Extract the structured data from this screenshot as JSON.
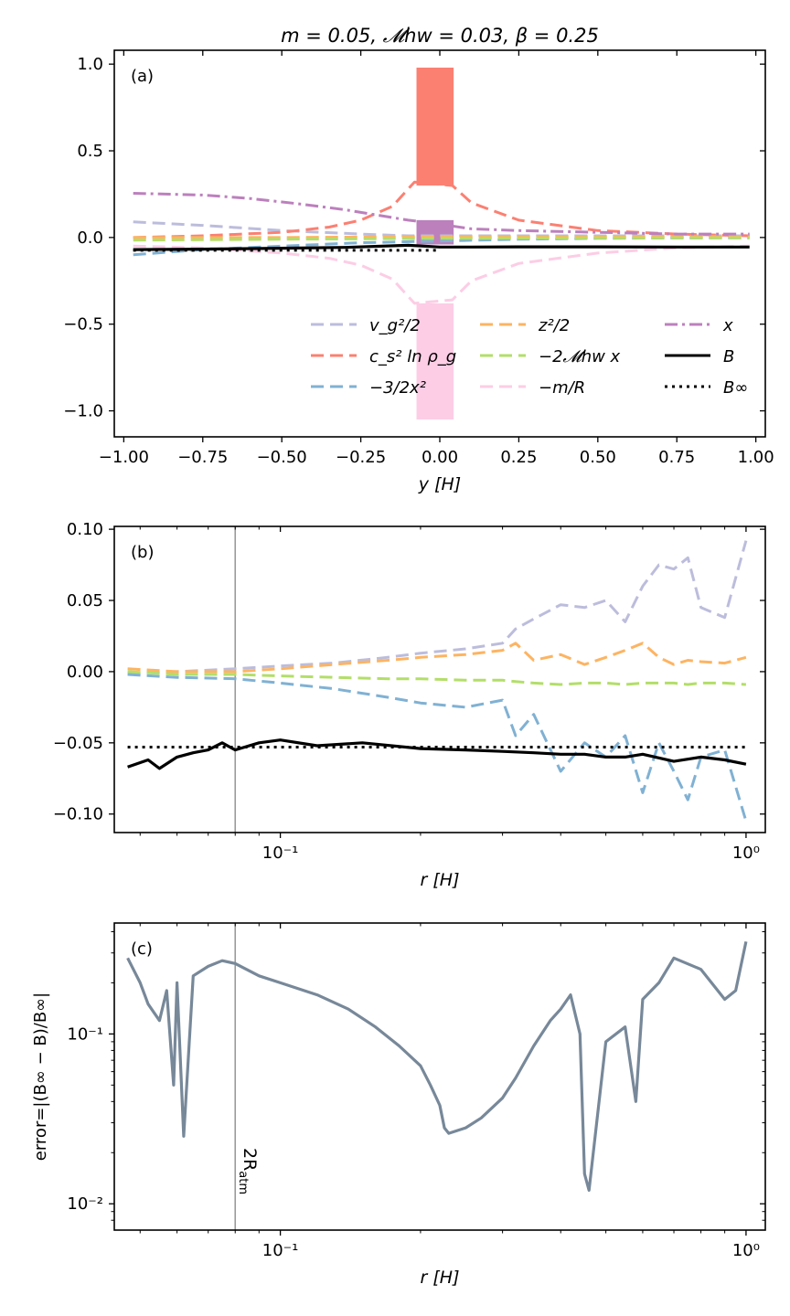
{
  "chart_data": [
    {
      "id": "a",
      "type": "line",
      "title": "m = 0.05,  𝓜hw = 0.03,  β = 0.25",
      "panel_label": "(a)",
      "xlabel": "y [H]",
      "ylabel": "",
      "xlim": [
        -1.03,
        1.03
      ],
      "ylim": [
        -1.15,
        1.08
      ],
      "xscale": "linear",
      "yscale": "linear",
      "xticks": [
        -1.0,
        -0.75,
        -0.5,
        -0.25,
        0.0,
        0.25,
        0.5,
        0.75,
        1.0
      ],
      "xtick_labels": [
        "−1.00",
        "−0.75",
        "−0.50",
        "−0.25",
        "0.00",
        "0.25",
        "0.50",
        "0.75",
        "1.00"
      ],
      "yticks": [
        -1.0,
        -0.5,
        0.0,
        0.5,
        1.0
      ],
      "ytick_labels": [
        "−1.0",
        "−0.5",
        "0.0",
        "0.5",
        "1.0"
      ],
      "legend": {
        "position": "lower-right",
        "entries": [
          {
            "label": "v_g²/2",
            "color": "#bcbddc",
            "style": "dashed"
          },
          {
            "label": "c_s² ln ρ_g",
            "color": "#fb8072",
            "style": "dashed"
          },
          {
            "label": "−3/2x²",
            "color": "#80b1d3",
            "style": "dashed"
          },
          {
            "label": "z²/2",
            "color": "#fdb462",
            "style": "dashed"
          },
          {
            "label": "−2𝓜hw x",
            "color": "#b3de69",
            "style": "dashed"
          },
          {
            "label": "−m/R",
            "color": "#fccde5",
            "style": "dashed"
          },
          {
            "label": "x",
            "color": "#bc80bd",
            "style": "dashdot"
          },
          {
            "label": "B",
            "color": "#000000",
            "style": "solid"
          },
          {
            "label": "B∞",
            "color": "#000000",
            "style": "dotted"
          }
        ]
      },
      "series": [
        {
          "name": "v_g²/2",
          "color": "#bcbddc",
          "style": "dashed",
          "x": [
            -0.97,
            -0.75,
            -0.5,
            -0.25,
            -0.1,
            0.0,
            0.25,
            0.5,
            0.75,
            0.98
          ],
          "y": [
            0.09,
            0.07,
            0.04,
            0.02,
            0.01,
            0.01,
            0.01,
            0.01,
            0.01,
            0.01
          ]
        },
        {
          "name": "c_s² ln ρ_g",
          "color": "#fb8072",
          "style": "dashed",
          "x": [
            -0.97,
            -0.75,
            -0.5,
            -0.35,
            -0.25,
            -0.15,
            -0.08,
            0.04,
            0.1,
            0.25,
            0.5,
            0.75,
            0.98
          ],
          "y": [
            0.0,
            0.01,
            0.03,
            0.06,
            0.1,
            0.18,
            0.32,
            0.3,
            0.2,
            0.1,
            0.04,
            0.02,
            0.01
          ]
        },
        {
          "name": "−3/2x²",
          "color": "#80b1d3",
          "style": "dashed",
          "x": [
            -0.97,
            -0.75,
            -0.5,
            -0.25,
            0.0,
            0.25,
            0.5,
            0.75,
            0.98
          ],
          "y": [
            -0.1,
            -0.07,
            -0.05,
            -0.03,
            -0.02,
            -0.01,
            -0.005,
            -0.003,
            -0.002
          ]
        },
        {
          "name": "z²/2",
          "color": "#fdb462",
          "style": "dashed",
          "x": [
            -0.97,
            -0.5,
            0.0,
            0.5,
            0.98
          ],
          "y": [
            0.0,
            0.0,
            0.005,
            0.005,
            0.005
          ]
        },
        {
          "name": "−2𝓜hw x",
          "color": "#b3de69",
          "style": "dashed",
          "x": [
            -0.97,
            -0.5,
            0.0,
            0.5,
            0.98
          ],
          "y": [
            -0.015,
            -0.01,
            -0.005,
            -0.003,
            -0.002
          ]
        },
        {
          "name": "−m/R",
          "color": "#fccde5",
          "style": "dashed",
          "x": [
            -0.97,
            -0.75,
            -0.5,
            -0.35,
            -0.25,
            -0.15,
            -0.08,
            0.04,
            0.1,
            0.25,
            0.5,
            0.75,
            0.98
          ],
          "y": [
            -0.05,
            -0.06,
            -0.09,
            -0.12,
            -0.16,
            -0.24,
            -0.38,
            -0.36,
            -0.25,
            -0.15,
            -0.09,
            -0.06,
            -0.05
          ]
        },
        {
          "name": "x",
          "color": "#bc80bd",
          "style": "dashdot",
          "x": [
            -0.97,
            -0.75,
            -0.6,
            -0.45,
            -0.3,
            -0.2,
            -0.1,
            -0.05,
            0.1,
            0.25,
            0.5,
            0.75,
            0.98
          ],
          "y": [
            0.255,
            0.245,
            0.225,
            0.195,
            0.16,
            0.13,
            0.1,
            0.09,
            0.05,
            0.04,
            0.03,
            0.02,
            0.02
          ]
        },
        {
          "name": "B",
          "color": "#000000",
          "style": "solid",
          "x": [
            -0.97,
            -0.75,
            -0.5,
            -0.3,
            -0.1,
            -0.05,
            0.0,
            0.1,
            0.25,
            0.5,
            0.75,
            0.98
          ],
          "y": [
            -0.07,
            -0.067,
            -0.062,
            -0.057,
            -0.045,
            -0.05,
            -0.055,
            -0.055,
            -0.054,
            -0.054,
            -0.055,
            -0.055
          ]
        },
        {
          "name": "B∞",
          "color": "#000000",
          "style": "dotted",
          "x": [
            -0.97,
            -0.5,
            0.0
          ],
          "y": [
            -0.074,
            -0.074,
            -0.074
          ]
        }
      ],
      "spikes": [
        {
          "name": "c_s² ln ρ_g spike",
          "color": "#fb8072",
          "x_range": [
            -0.07,
            0.04
          ],
          "y_range": [
            0.3,
            0.98
          ]
        },
        {
          "name": "−m/R spike",
          "color": "#fccde5",
          "x_range": [
            -0.07,
            0.04
          ],
          "y_range": [
            -1.05,
            -0.38
          ]
        },
        {
          "name": "x spike",
          "color": "#bc80bd",
          "x_range": [
            -0.07,
            0.04
          ],
          "y_range": [
            -0.04,
            0.1
          ]
        }
      ]
    },
    {
      "id": "b",
      "type": "line",
      "panel_label": "(b)",
      "xlabel": "r [H]",
      "ylabel": "",
      "xscale": "log",
      "xlim": [
        0.044,
        1.1
      ],
      "ylim": [
        -0.113,
        0.102
      ],
      "xticks": [
        0.1,
        1.0
      ],
      "xtick_labels": [
        "10⁻¹",
        "10⁰"
      ],
      "yticks": [
        -0.1,
        -0.05,
        0.0,
        0.05,
        0.1
      ],
      "ytick_labels": [
        "−0.10",
        "−0.05",
        "0.00",
        "0.05",
        "0.10"
      ],
      "vline": {
        "x": 0.08,
        "color": "#999999"
      },
      "series": [
        {
          "name": "v_g²/2",
          "color": "#bcbddc",
          "style": "dashed",
          "x": [
            0.047,
            0.06,
            0.08,
            0.1,
            0.13,
            0.17,
            0.2,
            0.25,
            0.3,
            0.32,
            0.35,
            0.4,
            0.45,
            0.5,
            0.55,
            0.6,
            0.65,
            0.7,
            0.75,
            0.8,
            0.9,
            1.0
          ],
          "y": [
            -0.001,
            0.0,
            0.002,
            0.004,
            0.006,
            0.01,
            0.013,
            0.016,
            0.02,
            0.03,
            0.037,
            0.047,
            0.045,
            0.05,
            0.035,
            0.06,
            0.075,
            0.072,
            0.08,
            0.045,
            0.038,
            0.092
          ]
        },
        {
          "name": "z²/2",
          "color": "#fdb462",
          "style": "dashed",
          "x": [
            0.047,
            0.06,
            0.08,
            0.1,
            0.13,
            0.17,
            0.2,
            0.25,
            0.3,
            0.32,
            0.35,
            0.4,
            0.45,
            0.5,
            0.55,
            0.6,
            0.65,
            0.7,
            0.75,
            0.8,
            0.9,
            1.0
          ],
          "y": [
            0.002,
            0.0,
            0.0,
            0.002,
            0.005,
            0.008,
            0.01,
            0.012,
            0.015,
            0.02,
            0.008,
            0.012,
            0.005,
            0.01,
            0.015,
            0.02,
            0.01,
            0.005,
            0.008,
            0.007,
            0.006,
            0.01
          ]
        },
        {
          "name": "−2𝓜hw x",
          "color": "#b3de69",
          "style": "dashed",
          "x": [
            0.047,
            0.06,
            0.08,
            0.1,
            0.13,
            0.17,
            0.2,
            0.25,
            0.3,
            0.32,
            0.35,
            0.4,
            0.45,
            0.5,
            0.55,
            0.6,
            0.65,
            0.7,
            0.75,
            0.8,
            0.9,
            1.0
          ],
          "y": [
            0.0,
            -0.002,
            -0.002,
            -0.003,
            -0.004,
            -0.005,
            -0.005,
            -0.006,
            -0.006,
            -0.007,
            -0.008,
            -0.009,
            -0.008,
            -0.008,
            -0.009,
            -0.008,
            -0.008,
            -0.008,
            -0.009,
            -0.008,
            -0.008,
            -0.009
          ]
        },
        {
          "name": "−3/2x²",
          "color": "#80b1d3",
          "style": "dashed",
          "x": [
            0.047,
            0.06,
            0.08,
            0.1,
            0.13,
            0.17,
            0.2,
            0.25,
            0.3,
            0.32,
            0.35,
            0.4,
            0.45,
            0.5,
            0.55,
            0.6,
            0.65,
            0.7,
            0.75,
            0.8,
            0.9,
            1.0
          ],
          "y": [
            -0.002,
            -0.004,
            -0.005,
            -0.008,
            -0.012,
            -0.018,
            -0.022,
            -0.025,
            -0.02,
            -0.045,
            -0.03,
            -0.07,
            -0.05,
            -0.06,
            -0.045,
            -0.085,
            -0.05,
            -0.07,
            -0.09,
            -0.06,
            -0.055,
            -0.105
          ]
        },
        {
          "name": "B",
          "color": "#000000",
          "style": "solid",
          "x": [
            0.047,
            0.052,
            0.055,
            0.06,
            0.065,
            0.07,
            0.075,
            0.08,
            0.09,
            0.1,
            0.12,
            0.15,
            0.2,
            0.25,
            0.3,
            0.35,
            0.4,
            0.45,
            0.5,
            0.55,
            0.6,
            0.7,
            0.8,
            0.9,
            1.0
          ],
          "y": [
            -0.067,
            -0.062,
            -0.068,
            -0.06,
            -0.057,
            -0.055,
            -0.05,
            -0.055,
            -0.05,
            -0.048,
            -0.052,
            -0.05,
            -0.054,
            -0.055,
            -0.056,
            -0.057,
            -0.058,
            -0.058,
            -0.06,
            -0.06,
            -0.058,
            -0.063,
            -0.06,
            -0.062,
            -0.065
          ]
        },
        {
          "name": "B∞",
          "color": "#000000",
          "style": "dotted",
          "x": [
            0.047,
            1.0
          ],
          "y": [
            -0.053,
            -0.053
          ]
        }
      ]
    },
    {
      "id": "c",
      "type": "line",
      "panel_label": "(c)",
      "xlabel": "r [H]",
      "ylabel": "error=|(B∞ − B)/B∞|",
      "xscale": "log",
      "yscale": "log",
      "xlim": [
        0.044,
        1.1
      ],
      "ylim": [
        0.007,
        0.45
      ],
      "xticks": [
        0.1,
        1.0
      ],
      "xtick_labels": [
        "10⁻¹",
        "10⁰"
      ],
      "yticks": [
        0.01,
        0.1
      ],
      "ytick_labels": [
        "10⁻²",
        "10⁻¹"
      ],
      "vline": {
        "x": 0.08,
        "color": "#999999",
        "label": "2R_atm"
      },
      "series": [
        {
          "name": "error",
          "color": "#778899",
          "style": "solid",
          "x": [
            0.047,
            0.05,
            0.052,
            0.055,
            0.057,
            0.059,
            0.06,
            0.062,
            0.065,
            0.07,
            0.075,
            0.08,
            0.09,
            0.1,
            0.12,
            0.14,
            0.16,
            0.18,
            0.2,
            0.21,
            0.22,
            0.225,
            0.23,
            0.25,
            0.27,
            0.3,
            0.32,
            0.35,
            0.38,
            0.4,
            0.42,
            0.44,
            0.45,
            0.46,
            0.5,
            0.55,
            0.58,
            0.6,
            0.65,
            0.7,
            0.8,
            0.9,
            0.95,
            1.0
          ],
          "y": [
            0.28,
            0.2,
            0.15,
            0.12,
            0.18,
            0.05,
            0.2,
            0.025,
            0.22,
            0.25,
            0.27,
            0.26,
            0.22,
            0.2,
            0.17,
            0.14,
            0.11,
            0.085,
            0.065,
            0.05,
            0.038,
            0.028,
            0.026,
            0.028,
            0.032,
            0.042,
            0.055,
            0.085,
            0.12,
            0.14,
            0.17,
            0.1,
            0.015,
            0.012,
            0.09,
            0.11,
            0.04,
            0.16,
            0.2,
            0.28,
            0.24,
            0.16,
            0.18,
            0.35
          ]
        }
      ]
    }
  ]
}
